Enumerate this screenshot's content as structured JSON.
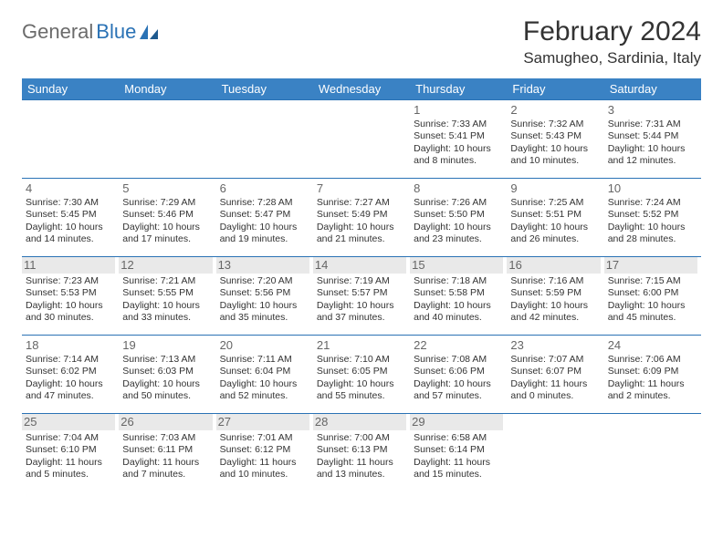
{
  "logo": {
    "text1": "General",
    "text2": "Blue"
  },
  "title": "February 2024",
  "location": "Samugheo, Sardinia, Italy",
  "colors": {
    "header_bg": "#3a82c4",
    "border": "#2a72b5",
    "text": "#333333",
    "daynum": "#666666",
    "shade": "#e9e9e9",
    "logo_gray": "#6b6b6b",
    "logo_blue": "#2a72b5",
    "white": "#ffffff"
  },
  "weekdays": [
    "Sunday",
    "Monday",
    "Tuesday",
    "Wednesday",
    "Thursday",
    "Friday",
    "Saturday"
  ],
  "weeks": [
    [
      null,
      null,
      null,
      null,
      {
        "n": "1",
        "sr": "Sunrise: 7:33 AM",
        "ss": "Sunset: 5:41 PM",
        "dl": "Daylight: 10 hours and 8 minutes."
      },
      {
        "n": "2",
        "sr": "Sunrise: 7:32 AM",
        "ss": "Sunset: 5:43 PM",
        "dl": "Daylight: 10 hours and 10 minutes."
      },
      {
        "n": "3",
        "sr": "Sunrise: 7:31 AM",
        "ss": "Sunset: 5:44 PM",
        "dl": "Daylight: 10 hours and 12 minutes."
      }
    ],
    [
      {
        "n": "4",
        "sr": "Sunrise: 7:30 AM",
        "ss": "Sunset: 5:45 PM",
        "dl": "Daylight: 10 hours and 14 minutes."
      },
      {
        "n": "5",
        "sr": "Sunrise: 7:29 AM",
        "ss": "Sunset: 5:46 PM",
        "dl": "Daylight: 10 hours and 17 minutes."
      },
      {
        "n": "6",
        "sr": "Sunrise: 7:28 AM",
        "ss": "Sunset: 5:47 PM",
        "dl": "Daylight: 10 hours and 19 minutes."
      },
      {
        "n": "7",
        "sr": "Sunrise: 7:27 AM",
        "ss": "Sunset: 5:49 PM",
        "dl": "Daylight: 10 hours and 21 minutes."
      },
      {
        "n": "8",
        "sr": "Sunrise: 7:26 AM",
        "ss": "Sunset: 5:50 PM",
        "dl": "Daylight: 10 hours and 23 minutes."
      },
      {
        "n": "9",
        "sr": "Sunrise: 7:25 AM",
        "ss": "Sunset: 5:51 PM",
        "dl": "Daylight: 10 hours and 26 minutes."
      },
      {
        "n": "10",
        "sr": "Sunrise: 7:24 AM",
        "ss": "Sunset: 5:52 PM",
        "dl": "Daylight: 10 hours and 28 minutes."
      }
    ],
    [
      {
        "n": "11",
        "sr": "Sunrise: 7:23 AM",
        "ss": "Sunset: 5:53 PM",
        "dl": "Daylight: 10 hours and 30 minutes."
      },
      {
        "n": "12",
        "sr": "Sunrise: 7:21 AM",
        "ss": "Sunset: 5:55 PM",
        "dl": "Daylight: 10 hours and 33 minutes."
      },
      {
        "n": "13",
        "sr": "Sunrise: 7:20 AM",
        "ss": "Sunset: 5:56 PM",
        "dl": "Daylight: 10 hours and 35 minutes."
      },
      {
        "n": "14",
        "sr": "Sunrise: 7:19 AM",
        "ss": "Sunset: 5:57 PM",
        "dl": "Daylight: 10 hours and 37 minutes."
      },
      {
        "n": "15",
        "sr": "Sunrise: 7:18 AM",
        "ss": "Sunset: 5:58 PM",
        "dl": "Daylight: 10 hours and 40 minutes."
      },
      {
        "n": "16",
        "sr": "Sunrise: 7:16 AM",
        "ss": "Sunset: 5:59 PM",
        "dl": "Daylight: 10 hours and 42 minutes."
      },
      {
        "n": "17",
        "sr": "Sunrise: 7:15 AM",
        "ss": "Sunset: 6:00 PM",
        "dl": "Daylight: 10 hours and 45 minutes."
      }
    ],
    [
      {
        "n": "18",
        "sr": "Sunrise: 7:14 AM",
        "ss": "Sunset: 6:02 PM",
        "dl": "Daylight: 10 hours and 47 minutes."
      },
      {
        "n": "19",
        "sr": "Sunrise: 7:13 AM",
        "ss": "Sunset: 6:03 PM",
        "dl": "Daylight: 10 hours and 50 minutes."
      },
      {
        "n": "20",
        "sr": "Sunrise: 7:11 AM",
        "ss": "Sunset: 6:04 PM",
        "dl": "Daylight: 10 hours and 52 minutes."
      },
      {
        "n": "21",
        "sr": "Sunrise: 7:10 AM",
        "ss": "Sunset: 6:05 PM",
        "dl": "Daylight: 10 hours and 55 minutes."
      },
      {
        "n": "22",
        "sr": "Sunrise: 7:08 AM",
        "ss": "Sunset: 6:06 PM",
        "dl": "Daylight: 10 hours and 57 minutes."
      },
      {
        "n": "23",
        "sr": "Sunrise: 7:07 AM",
        "ss": "Sunset: 6:07 PM",
        "dl": "Daylight: 11 hours and 0 minutes."
      },
      {
        "n": "24",
        "sr": "Sunrise: 7:06 AM",
        "ss": "Sunset: 6:09 PM",
        "dl": "Daylight: 11 hours and 2 minutes."
      }
    ],
    [
      {
        "n": "25",
        "sr": "Sunrise: 7:04 AM",
        "ss": "Sunset: 6:10 PM",
        "dl": "Daylight: 11 hours and 5 minutes."
      },
      {
        "n": "26",
        "sr": "Sunrise: 7:03 AM",
        "ss": "Sunset: 6:11 PM",
        "dl": "Daylight: 11 hours and 7 minutes."
      },
      {
        "n": "27",
        "sr": "Sunrise: 7:01 AM",
        "ss": "Sunset: 6:12 PM",
        "dl": "Daylight: 11 hours and 10 minutes."
      },
      {
        "n": "28",
        "sr": "Sunrise: 7:00 AM",
        "ss": "Sunset: 6:13 PM",
        "dl": "Daylight: 11 hours and 13 minutes."
      },
      {
        "n": "29",
        "sr": "Sunrise: 6:58 AM",
        "ss": "Sunset: 6:14 PM",
        "dl": "Daylight: 11 hours and 15 minutes."
      },
      null,
      null
    ]
  ]
}
